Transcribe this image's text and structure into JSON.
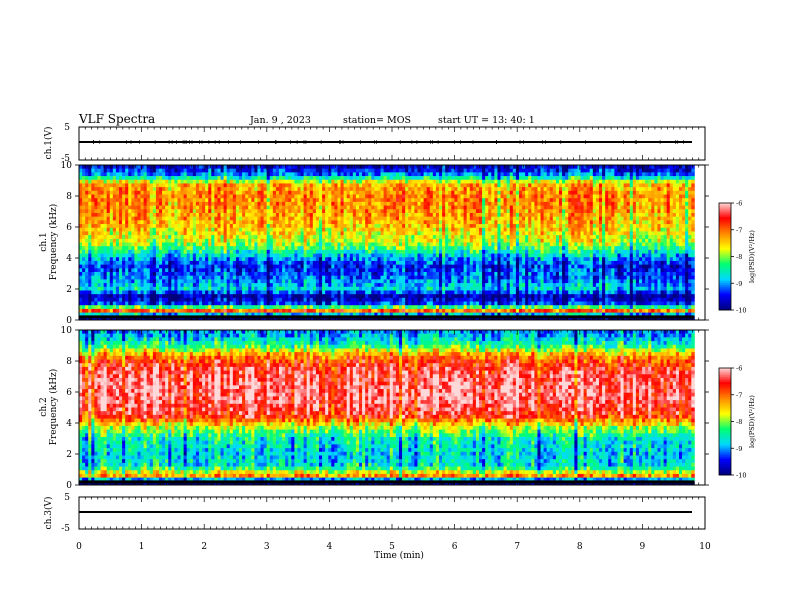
{
  "header": {
    "title": "VLF Spectra",
    "date": "Jan. 9 , 2023",
    "station": "station= MOS",
    "start": "start UT = 13: 40: 1"
  },
  "chart_data": [
    {
      "type": "line",
      "panel": "ch1-waveform",
      "ylabel": "ch.1(V)",
      "yticks": [
        "5",
        "-5"
      ],
      "ylim": [
        -5,
        5
      ],
      "x": [
        0,
        9.83
      ],
      "values": [
        0,
        0
      ],
      "grid": false
    },
    {
      "type": "heatmap",
      "panel": "ch1-spectrogram",
      "ylabel": "ch.1\nFrequency (kHz)",
      "ylabel_lines": [
        "ch.1",
        "Frequency (kHz)"
      ],
      "yticks": [
        "0",
        "2",
        "4",
        "6",
        "8",
        "10"
      ],
      "ylim": [
        0,
        10
      ],
      "xlim": [
        0,
        10
      ],
      "time_extent_min": 9.83,
      "colorbar": {
        "label": "log(PSD)(V²/Hz)",
        "ticks": [
          "-6",
          "-7",
          "-8",
          "-9",
          "-10"
        ],
        "range": [
          -10,
          -6
        ],
        "colors": [
          "#00007a",
          "#0000ff",
          "#00d9ff",
          "#00ff70",
          "#ffff00",
          "#ff8800",
          "#ff0000",
          "#ffd9d9"
        ]
      },
      "z_profile_log_psd": [
        {
          "freq_khz": 0.2,
          "level": -10.0
        },
        {
          "freq_khz": 0.6,
          "level": -6.9
        },
        {
          "freq_khz": 1.0,
          "level": -9.2
        },
        {
          "freq_khz": 1.5,
          "level": -9.9
        },
        {
          "freq_khz": 2.0,
          "level": -8.7
        },
        {
          "freq_khz": 2.7,
          "level": -9.1
        },
        {
          "freq_khz": 3.5,
          "level": -9.4
        },
        {
          "freq_khz": 4.2,
          "level": -8.7
        },
        {
          "freq_khz": 5.0,
          "level": -7.8
        },
        {
          "freq_khz": 6.0,
          "level": -7.4
        },
        {
          "freq_khz": 7.0,
          "level": -7.2
        },
        {
          "freq_khz": 8.0,
          "level": -7.1
        },
        {
          "freq_khz": 8.8,
          "level": -7.3
        },
        {
          "freq_khz": 9.3,
          "level": -8.9
        },
        {
          "freq_khz": 9.8,
          "level": -9.6
        }
      ]
    },
    {
      "type": "heatmap",
      "panel": "ch2-spectrogram",
      "ylabel": "ch.2\nFrequency (kHz)",
      "ylabel_lines": [
        "ch.2",
        "Frequency (kHz)"
      ],
      "yticks": [
        "0",
        "2",
        "4",
        "6",
        "8",
        "10"
      ],
      "ylim": [
        0,
        10
      ],
      "xlim": [
        0,
        10
      ],
      "time_extent_min": 9.83,
      "colorbar": {
        "label": "log(PSD)(V²/Hz)",
        "ticks": [
          "-6",
          "-7",
          "-8",
          "-9",
          "-10"
        ],
        "range": [
          -10,
          -6
        ],
        "colors": [
          "#00007a",
          "#0000ff",
          "#00d9ff",
          "#00ff70",
          "#ffff00",
          "#ff8800",
          "#ff0000",
          "#ffd9d9"
        ]
      },
      "z_profile_log_psd": [
        {
          "freq_khz": 0.2,
          "level": -10.0
        },
        {
          "freq_khz": 0.6,
          "level": -7.1
        },
        {
          "freq_khz": 1.2,
          "level": -8.6
        },
        {
          "freq_khz": 2.0,
          "level": -8.7
        },
        {
          "freq_khz": 3.0,
          "level": -8.5
        },
        {
          "freq_khz": 3.7,
          "level": -7.8
        },
        {
          "freq_khz": 4.5,
          "level": -6.5
        },
        {
          "freq_khz": 5.5,
          "level": -6.2
        },
        {
          "freq_khz": 6.5,
          "level": -6.2
        },
        {
          "freq_khz": 7.5,
          "level": -6.4
        },
        {
          "freq_khz": 8.3,
          "level": -7.0
        },
        {
          "freq_khz": 9.0,
          "level": -8.3
        },
        {
          "freq_khz": 9.8,
          "level": -9.0
        }
      ]
    },
    {
      "type": "line",
      "panel": "ch3-waveform",
      "ylabel": "ch.3(V)",
      "yticks": [
        "5",
        "-5"
      ],
      "ylim": [
        -5,
        5
      ],
      "x": [
        0,
        9.83
      ],
      "values": [
        0,
        0
      ],
      "grid": false
    }
  ],
  "x_axis": {
    "label": "Time (min)",
    "ticks": [
      "0",
      "1",
      "2",
      "3",
      "4",
      "5",
      "6",
      "7",
      "8",
      "9",
      "10"
    ],
    "range": [
      0,
      10
    ]
  }
}
